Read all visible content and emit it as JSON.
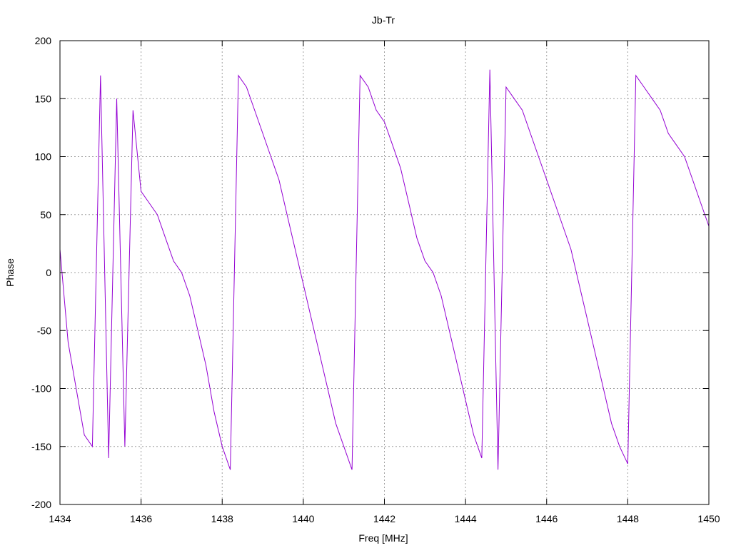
{
  "chart_data": {
    "type": "line",
    "title": "Jb-Tr",
    "xlabel": "Freq [MHz]",
    "ylabel": "Phase",
    "xlim": [
      1434,
      1450
    ],
    "ylim": [
      -200,
      200
    ],
    "xticks": [
      1434,
      1436,
      1438,
      1440,
      1442,
      1444,
      1446,
      1448,
      1450
    ],
    "yticks": [
      -200,
      -150,
      -100,
      -50,
      0,
      50,
      100,
      150,
      200
    ],
    "grid": true,
    "series_color": "#9400d3",
    "series": [
      {
        "name": "",
        "x": [
          1434.0,
          1434.2,
          1434.4,
          1434.6,
          1434.8,
          1435.0,
          1435.2,
          1435.4,
          1435.6,
          1435.8,
          1436.0,
          1436.2,
          1436.4,
          1436.6,
          1436.8,
          1437.0,
          1437.2,
          1437.4,
          1437.6,
          1437.8,
          1438.0,
          1438.2,
          1438.4,
          1438.6,
          1438.8,
          1439.0,
          1439.2,
          1439.4,
          1439.6,
          1439.8,
          1440.0,
          1440.2,
          1440.4,
          1440.6,
          1440.8,
          1441.0,
          1441.2,
          1441.4,
          1441.6,
          1441.8,
          1442.0,
          1442.2,
          1442.4,
          1442.6,
          1442.8,
          1443.0,
          1443.2,
          1443.4,
          1443.6,
          1443.8,
          1444.0,
          1444.2,
          1444.4,
          1444.6,
          1444.8,
          1445.0,
          1445.2,
          1445.4,
          1445.6,
          1445.8,
          1446.0,
          1446.2,
          1446.4,
          1446.6,
          1446.8,
          1447.0,
          1447.2,
          1447.4,
          1447.6,
          1447.8,
          1448.0,
          1448.2,
          1448.4,
          1448.6,
          1448.8,
          1449.0,
          1449.2,
          1449.4,
          1449.6,
          1449.8,
          1450.0
        ],
        "y": [
          20,
          -60,
          -100,
          -140,
          -150,
          170,
          -160,
          150,
          -150,
          140,
          70,
          60,
          50,
          30,
          10,
          0,
          -20,
          -50,
          -80,
          -120,
          -150,
          -170,
          170,
          160,
          140,
          120,
          100,
          80,
          50,
          20,
          -10,
          -40,
          -70,
          -100,
          -130,
          -150,
          -170,
          170,
          160,
          140,
          130,
          110,
          90,
          60,
          30,
          10,
          0,
          -20,
          -50,
          -80,
          -110,
          -140,
          -160,
          175,
          -170,
          160,
          150,
          140,
          120,
          100,
          80,
          60,
          40,
          20,
          -10,
          -40,
          -70,
          -100,
          -130,
          -150,
          -165,
          170,
          160,
          150,
          140,
          120,
          110,
          100,
          80,
          60,
          40
        ]
      }
    ]
  }
}
